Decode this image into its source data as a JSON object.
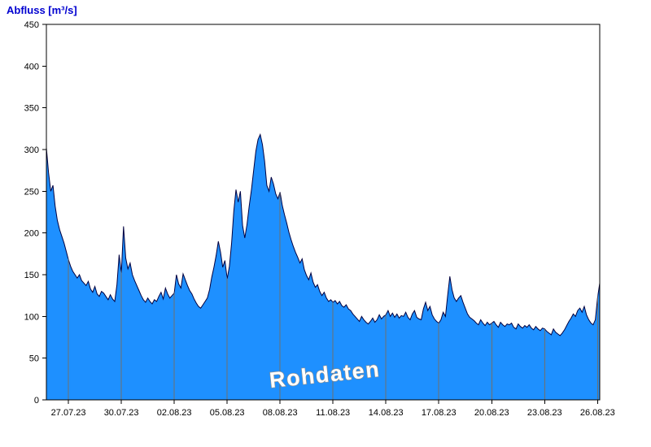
{
  "chart_data": {
    "type": "area",
    "title": "Abfluss [m³/s]",
    "ylabel": "Abfluss [m³/s]",
    "watermark": "Rohdaten",
    "series_name": "Rohdaten",
    "x_tick_labels": [
      "27.07.23",
      "30.07.23",
      "02.08.23",
      "05.08.23",
      "08.08.23",
      "11.08.23",
      "14.08.23",
      "17.08.23",
      "20.08.23",
      "23.08.23",
      "26.08.23"
    ],
    "x_tick_days": [
      0,
      3,
      6,
      9,
      12,
      15,
      18,
      21,
      24,
      27,
      30
    ],
    "x_range_days": [
      -1.25,
      30.125
    ],
    "y_ticks": [
      0,
      50,
      100,
      150,
      200,
      250,
      300,
      350,
      400,
      450
    ],
    "ylim": [
      0,
      450
    ],
    "grid": "vertical-only",
    "legend_position": "none",
    "fill_color": "#1E90FF",
    "line_color": "#000040",
    "grid_color": "#6f6f6f",
    "axis_color": "#000000",
    "sample_start_day": -1.25,
    "sample_step_days": 0.125,
    "values": [
      302,
      272,
      250,
      257,
      232,
      215,
      204,
      196,
      188,
      178,
      168,
      160,
      154,
      150,
      146,
      150,
      143,
      140,
      137,
      142,
      133,
      129,
      136,
      127,
      124,
      130,
      128,
      124,
      120,
      126,
      121,
      118,
      138,
      174,
      152,
      208,
      170,
      157,
      164,
      150,
      143,
      137,
      131,
      125,
      120,
      117,
      122,
      118,
      115,
      120,
      118,
      124,
      129,
      121,
      134,
      127,
      122,
      125,
      128,
      150,
      139,
      134,
      151,
      144,
      137,
      131,
      127,
      121,
      116,
      112,
      110,
      114,
      118,
      122,
      132,
      147,
      159,
      173,
      190,
      177,
      159,
      167,
      145,
      160,
      188,
      226,
      252,
      237,
      250,
      209,
      194,
      210,
      232,
      252,
      275,
      298,
      312,
      318,
      306,
      286,
      257,
      250,
      267,
      259,
      247,
      241,
      249,
      233,
      222,
      212,
      201,
      192,
      184,
      177,
      171,
      164,
      169,
      156,
      149,
      144,
      152,
      141,
      135,
      138,
      130,
      125,
      129,
      122,
      118,
      120,
      117,
      119,
      115,
      118,
      113,
      111,
      114,
      109,
      107,
      103,
      100,
      97,
      94,
      100,
      96,
      93,
      91,
      94,
      98,
      93,
      96,
      102,
      97,
      100,
      102,
      107,
      100,
      104,
      99,
      103,
      98,
      101,
      100,
      105,
      99,
      96,
      103,
      107,
      99,
      97,
      96,
      109,
      117,
      107,
      112,
      102,
      97,
      94,
      92,
      96,
      105,
      100,
      125,
      148,
      132,
      122,
      118,
      122,
      125,
      117,
      110,
      103,
      99,
      97,
      95,
      92,
      90,
      96,
      92,
      89,
      93,
      90,
      92,
      94,
      90,
      87,
      93,
      90,
      88,
      91,
      90,
      92,
      87,
      85,
      91,
      88,
      86,
      89,
      87,
      90,
      86,
      84,
      88,
      85,
      83,
      86,
      85,
      82,
      80,
      78,
      85,
      81,
      79,
      77,
      80,
      84,
      89,
      94,
      98,
      103,
      100,
      107,
      110,
      105,
      112,
      102,
      96,
      92,
      90,
      96,
      122,
      140
    ]
  }
}
